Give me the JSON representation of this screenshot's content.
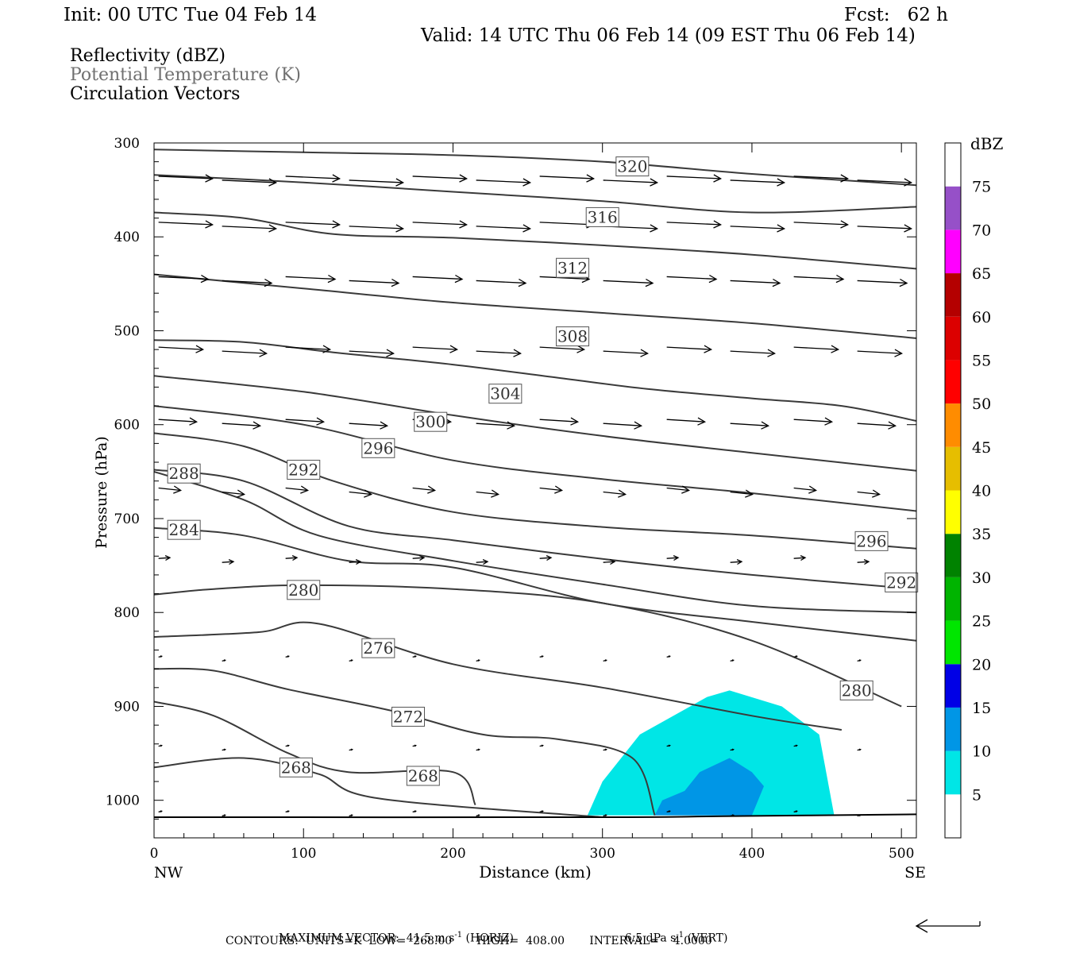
{
  "header": {
    "init": "Init: 00 UTC Tue 04 Feb 14",
    "fcst": "Fcst:   62 h",
    "valid": "Valid: 14 UTC Thu 06 Feb 14 (09 EST Thu 06 Feb 14)"
  },
  "fields": [
    {
      "label": "Reflectivity (dBZ)",
      "color": "#000000"
    },
    {
      "label": "Potential Temperature (K)",
      "color": "#707070"
    },
    {
      "label": "Circulation Vectors",
      "color": "#000000"
    }
  ],
  "footer": {
    "max_vector_label": "MAXIMUM VECTOR:",
    "horiz_value": "41.5 m s",
    "horiz_exp": "-1",
    "horiz_tag": "(HORIZ)",
    "vert_value": "6.5 dPa s",
    "vert_exp": "-1",
    "vert_tag": "(VERT)",
    "contours": "CONTOURS:  UNITS=K  LOW=  268.00       HIGH=  408.00       INTERVAL=    4.0000"
  },
  "chart_data": {
    "type": "contour",
    "xlabel": "Distance (km)",
    "ylabel": "Pressure (hPa)",
    "xlim": [
      0,
      510
    ],
    "ylim": [
      1040,
      300
    ],
    "x_ticks": [
      0,
      100,
      200,
      300,
      400,
      500
    ],
    "y_ticks": [
      300,
      400,
      500,
      600,
      700,
      800,
      900,
      1000
    ],
    "x_end_labels": {
      "left": "NW",
      "right": "SE"
    },
    "colorbar": {
      "unit": "dBZ",
      "ticks": [
        5,
        10,
        15,
        20,
        25,
        30,
        35,
        40,
        45,
        50,
        55,
        60,
        65,
        70,
        75
      ],
      "colors": [
        "#ffffff",
        "#00e6e6",
        "#0096e6",
        "#0000e6",
        "#00e600",
        "#00b400",
        "#008200",
        "#ffff00",
        "#e6be00",
        "#ff8c00",
        "#ff0000",
        "#dc0000",
        "#b40000",
        "#ff00ff",
        "#9650c8",
        "#ffffff"
      ]
    },
    "terrain": [
      [
        0,
        1018
      ],
      [
        300,
        1018
      ],
      [
        380,
        1017
      ],
      [
        510,
        1015
      ]
    ],
    "contour_lines": [
      {
        "pts": [
          [
            0,
            307
          ],
          [
            100,
            310
          ],
          [
            200,
            313
          ],
          [
            300,
            320
          ],
          [
            400,
            333
          ],
          [
            510,
            345
          ]
        ]
      },
      {
        "pts": [
          [
            0,
            334
          ],
          [
            100,
            342
          ],
          [
            200,
            352
          ],
          [
            300,
            362
          ],
          [
            400,
            374
          ],
          [
            510,
            368
          ]
        ]
      },
      {
        "pts": [
          [
            0,
            374
          ],
          [
            60,
            380
          ],
          [
            120,
            397
          ],
          [
            200,
            401
          ],
          [
            300,
            409
          ],
          [
            400,
            419
          ],
          [
            510,
            434
          ]
        ]
      },
      {
        "pts": [
          [
            0,
            440
          ],
          [
            100,
            455
          ],
          [
            200,
            470
          ],
          [
            300,
            481
          ],
          [
            400,
            492
          ],
          [
            510,
            508
          ]
        ]
      },
      {
        "pts": [
          [
            0,
            510
          ],
          [
            60,
            512
          ],
          [
            120,
            523
          ],
          [
            200,
            536
          ],
          [
            270,
            550
          ],
          [
            330,
            562
          ],
          [
            400,
            572
          ],
          [
            460,
            580
          ],
          [
            510,
            596
          ]
        ]
      },
      {
        "pts": [
          [
            0,
            548
          ],
          [
            100,
            565
          ],
          [
            200,
            590
          ],
          [
            300,
            612
          ],
          [
            400,
            630
          ],
          [
            510,
            649
          ]
        ]
      },
      {
        "pts": [
          [
            0,
            580
          ],
          [
            100,
            600
          ],
          [
            200,
            638
          ],
          [
            300,
            658
          ],
          [
            400,
            673
          ],
          [
            510,
            692
          ]
        ]
      },
      {
        "pts": [
          [
            0,
            609
          ],
          [
            60,
            623
          ],
          [
            120,
            660
          ],
          [
            200,
            693
          ],
          [
            300,
            709
          ],
          [
            400,
            718
          ],
          [
            510,
            732
          ]
        ],
        "label": "296",
        "lab": [
          [
            150,
            625
          ],
          [
            480,
            724
          ]
        ]
      },
      {
        "pts": [
          [
            0,
            648
          ],
          [
            60,
            660
          ],
          [
            130,
            708
          ],
          [
            200,
            723
          ],
          [
            300,
            743
          ],
          [
            400,
            760
          ],
          [
            510,
            775
          ]
        ],
        "label": "292",
        "lab": [
          [
            100,
            648
          ],
          [
            500,
            768
          ]
        ]
      },
      {
        "pts": [
          [
            0,
            650
          ],
          [
            60,
            680
          ],
          [
            110,
            718
          ],
          [
            200,
            745
          ],
          [
            300,
            770
          ],
          [
            400,
            793
          ],
          [
            510,
            800
          ]
        ],
        "label": "288",
        "lab": [
          [
            20,
            652
          ]
        ]
      },
      {
        "pts": [
          [
            0,
            710
          ],
          [
            60,
            718
          ],
          [
            130,
            745
          ],
          [
            200,
            752
          ],
          [
            300,
            790
          ],
          [
            400,
            810
          ],
          [
            510,
            830
          ]
        ],
        "label": "284",
        "lab": [
          [
            20,
            712
          ]
        ]
      },
      {
        "pts": [
          [
            0,
            781
          ],
          [
            40,
            775
          ],
          [
            100,
            771
          ],
          [
            200,
            775
          ],
          [
            300,
            790
          ],
          [
            400,
            830
          ],
          [
            500,
            900
          ]
        ],
        "label": "280",
        "lab": [
          [
            100,
            776
          ],
          [
            470,
            883
          ]
        ]
      },
      {
        "pts": [
          [
            0,
            826
          ],
          [
            70,
            821
          ],
          [
            110,
            812
          ],
          [
            200,
            855
          ],
          [
            300,
            880
          ],
          [
            400,
            910
          ],
          [
            460,
            925
          ]
        ],
        "label": "276",
        "lab": [
          [
            150,
            838
          ]
        ]
      },
      {
        "pts": [
          [
            0,
            860
          ],
          [
            40,
            862
          ],
          [
            90,
            882
          ],
          [
            160,
            905
          ],
          [
            220,
            930
          ],
          [
            270,
            935
          ],
          [
            320,
            955
          ],
          [
            335,
            1016
          ]
        ],
        "label": "272",
        "lab": [
          [
            170,
            911
          ]
        ]
      },
      {
        "pts": [
          [
            0,
            895
          ],
          [
            40,
            910
          ],
          [
            90,
            950
          ],
          [
            130,
            970
          ],
          [
            200,
            970
          ],
          [
            215,
            1005
          ]
        ],
        "label": "268",
        "lab": [
          [
            180,
            974
          ]
        ]
      },
      {
        "pts": [
          [
            0,
            965
          ],
          [
            60,
            955
          ],
          [
            110,
            972
          ],
          [
            150,
            998
          ],
          [
            300,
            1018
          ]
        ],
        "label": "268",
        "lab": [
          [
            95,
            965
          ]
        ]
      }
    ],
    "stream_labels": [
      {
        "label": "320",
        "x": 320,
        "p": 325
      },
      {
        "label": "316",
        "x": 300,
        "p": 379
      },
      {
        "label": "312",
        "x": 280,
        "p": 433
      },
      {
        "label": "308",
        "x": 280,
        "p": 506
      },
      {
        "label": "304",
        "x": 235,
        "p": 567
      },
      {
        "label": "300",
        "x": 185,
        "p": 597
      }
    ],
    "vector_rows": [
      {
        "p": 338,
        "mag": 0.85
      },
      {
        "p": 387,
        "mag": 0.85
      },
      {
        "p": 445,
        "mag": 0.78
      },
      {
        "p": 520,
        "mag": 0.7
      },
      {
        "p": 597,
        "mag": 0.6
      },
      {
        "p": 670,
        "mag": 0.35
      },
      {
        "p": 745,
        "mag": 0.18
      },
      {
        "p": 850,
        "mag": 0.04
      },
      {
        "p": 945,
        "mag": 0.05
      },
      {
        "p": 1015,
        "mag": 0.04
      }
    ],
    "reflectivity": [
      {
        "dbz": 5,
        "color": "#00e6e6",
        "poly": [
          [
            290,
            1016
          ],
          [
            300,
            980
          ],
          [
            325,
            930
          ],
          [
            370,
            890
          ],
          [
            385,
            883
          ],
          [
            420,
            900
          ],
          [
            445,
            930
          ],
          [
            455,
            1016
          ]
        ]
      },
      {
        "dbz": 10,
        "color": "#0096e6",
        "poly": [
          [
            335,
            1016
          ],
          [
            340,
            1000
          ],
          [
            355,
            990
          ],
          [
            365,
            970
          ],
          [
            385,
            955
          ],
          [
            400,
            970
          ],
          [
            408,
            985
          ],
          [
            400,
            1016
          ]
        ]
      }
    ],
    "ref_vector": {
      "mag": 1.0
    }
  }
}
